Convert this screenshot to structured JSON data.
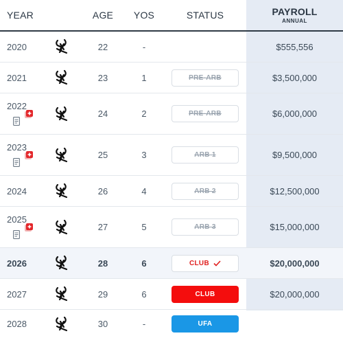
{
  "header": {
    "year": "YEAR",
    "age": "AGE",
    "yos": "YOS",
    "status": "STATUS",
    "payroll": "PAYROLL",
    "payroll_sub": "ANNUAL"
  },
  "colors": {
    "club_red": "#f40d0d",
    "ufa_blue": "#1a97e6",
    "payroll_column": "#e5ebf4"
  },
  "team_logo_icon": "white-sox-logo-icon",
  "rows": [
    {
      "year": "2020",
      "age": "22",
      "yos": "-",
      "status": "",
      "payroll": "$555,556"
    },
    {
      "year": "2021",
      "age": "23",
      "yos": "1",
      "status": "PRE-ARB",
      "payroll": "$3,500,000"
    },
    {
      "year": "2022",
      "age": "24",
      "yos": "2",
      "status": "PRE-ARB",
      "payroll": "$6,000,000"
    },
    {
      "year": "2023",
      "age": "25",
      "yos": "3",
      "status": "ARB 1",
      "payroll": "$9,500,000"
    },
    {
      "year": "2024",
      "age": "26",
      "yos": "4",
      "status": "ARB 2",
      "payroll": "$12,500,000"
    },
    {
      "year": "2025",
      "age": "27",
      "yos": "5",
      "status": "ARB 3",
      "payroll": "$15,000,000"
    },
    {
      "year": "2026",
      "age": "28",
      "yos": "6",
      "status": "CLUB",
      "payroll": "$20,000,000"
    },
    {
      "year": "2027",
      "age": "29",
      "yos": "6",
      "status": "CLUB",
      "payroll": "$20,000,000"
    },
    {
      "year": "2028",
      "age": "30",
      "yos": "-",
      "status": "UFA",
      "payroll": ""
    }
  ]
}
